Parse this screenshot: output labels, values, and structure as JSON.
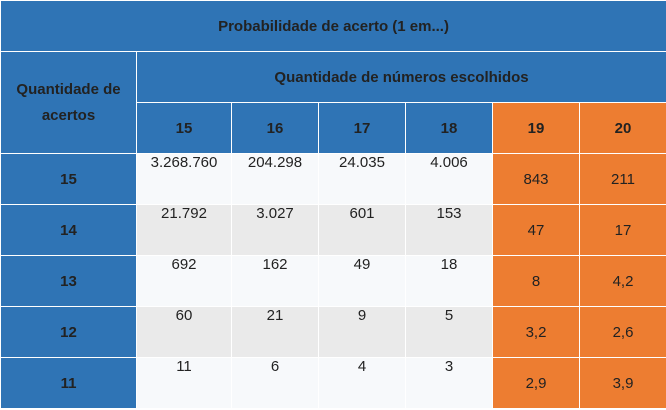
{
  "title": "Probabilidade de acerto (1 em...)",
  "row_header_label": "Quantidade de acertos",
  "col_group_label": "Quantidade de números escolhidos",
  "columns": [
    "15",
    "16",
    "17",
    "18",
    "19",
    "20"
  ],
  "rows": [
    {
      "label": "15",
      "values": [
        "3.268.760",
        "204.298",
        "24.035",
        "4.006",
        "843",
        "211"
      ]
    },
    {
      "label": "14",
      "values": [
        "21.792",
        "3.027",
        "601",
        "153",
        "47",
        "17"
      ]
    },
    {
      "label": "13",
      "values": [
        "692",
        "162",
        "49",
        "18",
        "8",
        "4,2"
      ]
    },
    {
      "label": "12",
      "values": [
        "60",
        "21",
        "9",
        "5",
        "3,2",
        "2,6"
      ]
    },
    {
      "label": "11",
      "values": [
        "11",
        "6",
        "4",
        "3",
        "2,9",
        "3,9"
      ]
    }
  ],
  "colors": {
    "header_blue": "#2f74b5",
    "highlight_orange": "#ed7d31",
    "cell_light": "#f7f9fb",
    "cell_gray": "#eaeaea"
  }
}
